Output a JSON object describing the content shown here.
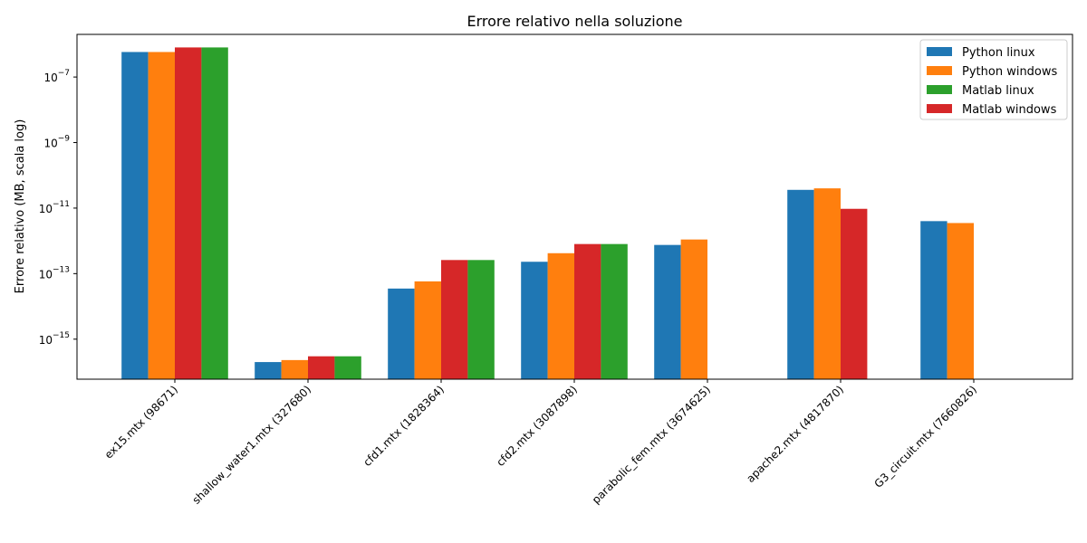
{
  "chart_data": {
    "type": "bar",
    "title": "Errore relativo nella soluzione",
    "xlabel": "",
    "ylabel": "Errore relativo (MB, scala log)",
    "yscale": "log",
    "ylim": [
      6e-17,
      2e-06
    ],
    "yticks": [
      {
        "value": 1e-15,
        "base": "10",
        "exp": "−15"
      },
      {
        "value": 1e-13,
        "base": "10",
        "exp": "−13"
      },
      {
        "value": 1e-11,
        "base": "10",
        "exp": "−11"
      },
      {
        "value": 1e-09,
        "base": "10",
        "exp": "−9"
      },
      {
        "value": 1e-07,
        "base": "10",
        "exp": "−7"
      }
    ],
    "categories": [
      "ex15.mtx (98671)",
      "shallow_water1.mtx (327680)",
      "cfd1.mtx (1828364)",
      "cfd2.mtx (3087898)",
      "parabolic_fem.mtx (3674625)",
      "apache2.mtx (4817870)",
      "G3_circuit.mtx (7660826)"
    ],
    "series": [
      {
        "name": "Python linux",
        "color": "#1f77b4",
        "values": [
          5.8e-07,
          2e-16,
          3.5e-14,
          2.3e-13,
          7.5e-13,
          3.6e-11,
          4e-12
        ]
      },
      {
        "name": "Python windows",
        "color": "#ff7f0e",
        "values": [
          5.8e-07,
          2.3e-16,
          5.8e-14,
          4.2e-13,
          1.1e-12,
          4e-11,
          3.5e-12
        ]
      },
      {
        "name": "Matlab linux",
        "color": "#2ca02c",
        "values": [
          8e-07,
          3e-16,
          2.6e-13,
          8e-13,
          null,
          null,
          null
        ]
      },
      {
        "name": "Matlab windows",
        "color": "#d62728",
        "values": [
          8e-07,
          3e-16,
          2.6e-13,
          8e-13,
          null,
          9.5e-12,
          null
        ]
      }
    ],
    "bar_order": [
      "Python linux",
      "Python windows",
      "Matlab windows",
      "Matlab linux"
    ],
    "legend_position": "top-right",
    "grid": false
  }
}
